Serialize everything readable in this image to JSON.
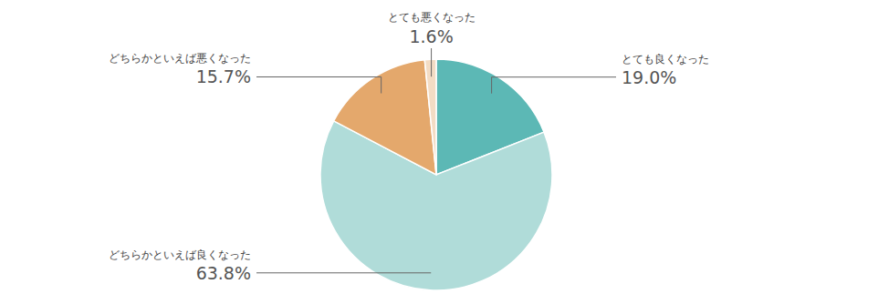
{
  "chart_data": {
    "type": "pie",
    "categories": [
      "とても良くなった",
      "どちらかといえば良くなった",
      "どちらかといえば悪くなった",
      "とても悪くなった"
    ],
    "values": [
      19.0,
      63.8,
      15.7,
      1.6
    ],
    "value_labels": [
      "19.0%",
      "63.8%",
      "15.7%",
      "1.6%"
    ],
    "colors": [
      "#5cb8b5",
      "#b0dcd9",
      "#e4a86c",
      "#f3dcc4"
    ],
    "data_labels": true
  }
}
